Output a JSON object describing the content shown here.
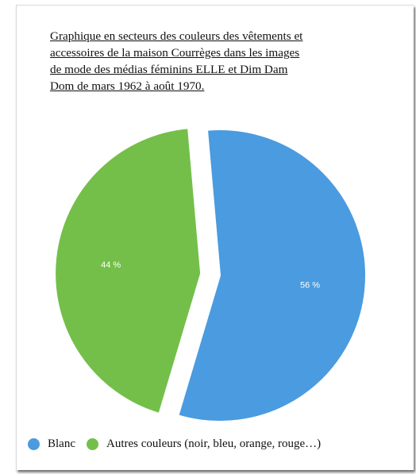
{
  "chart_data": {
    "type": "pie",
    "title": "Graphique en secteurs des couleurs des vêtements et\naccessoires de la maison Courrèges dans les images\nde mode des médias féminins ELLE et Dim Dam\nDom de mars 1962 à août 1970.",
    "slices": [
      {
        "name": "Blanc",
        "value": 56,
        "label": "56 %",
        "color": "#4a9be0",
        "exploded": false
      },
      {
        "name": "Autres couleurs (noir, bleu, orange, rouge…)",
        "value": 44,
        "label": "44 %",
        "color": "#74bf49",
        "exploded": true
      }
    ],
    "legend_position": "bottom-left"
  }
}
